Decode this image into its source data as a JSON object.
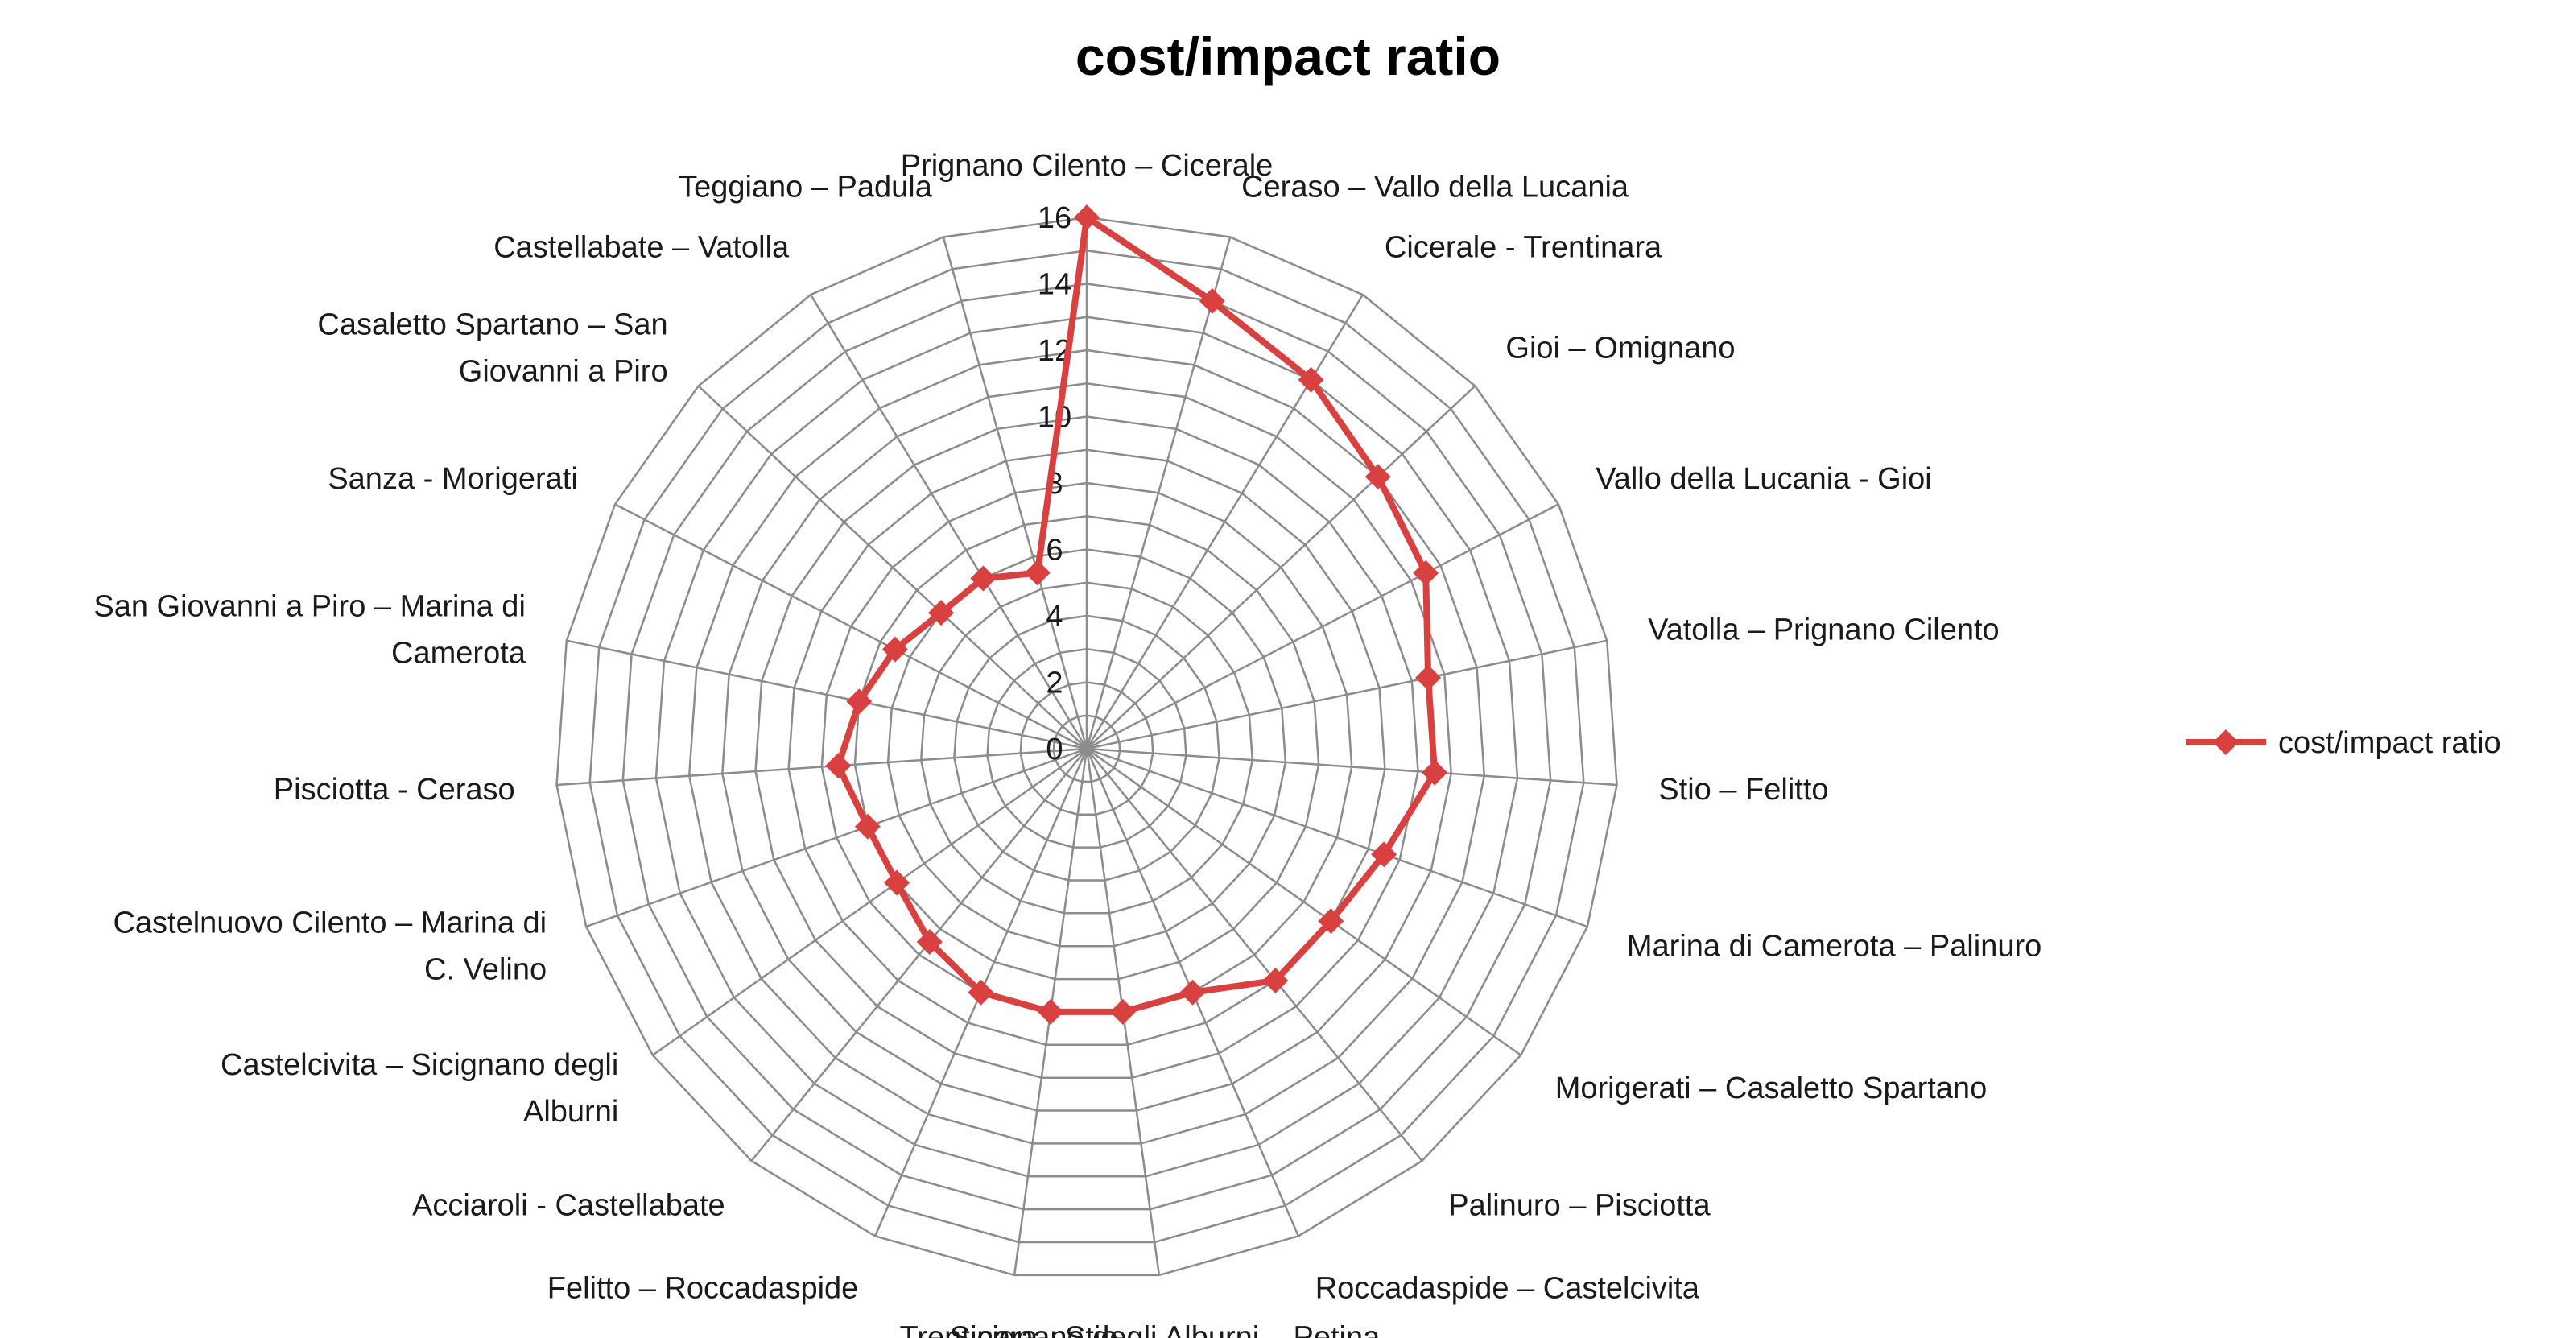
{
  "chart_data": {
    "type": "radar",
    "title": "cost/impact ratio",
    "categories": [
      "Prignano Cilento – Cicerale",
      "Ceraso – Vallo della Lucania",
      "Cicerale - Trentinara",
      "Gioi – Omignano",
      "Vallo della Lucania - Gioi",
      "Vatolla – Prignano Cilento",
      "Stio – Felitto",
      "Marina di Camerota – Palinuro",
      "Morigerati – Casaletto Spartano",
      "Palinuro – Pisciotta",
      "Roccadaspide – Castelcivita",
      "Sicignano degli Alburni – Petina",
      "Trentinara - Stio",
      "Felitto – Roccadaspide",
      "Acciaroli - Castellabate",
      "Castelcivita – Sicignano degli Alburni",
      "Castelnuovo Cilento – Marina di C. Velino",
      "Pisciotta - Ceraso",
      "San Giovanni a Piro – Marina di Camerota",
      "Sanza - Morigerati",
      "Casaletto Spartano – San Giovanni a Piro",
      "Castellabate – Vatolla",
      "Teggiano – Padula"
    ],
    "label_lines": [
      [
        "Prignano Cilento – Cicerale"
      ],
      [
        "Ceraso – Vallo della Lucania"
      ],
      [
        "Cicerale - Trentinara"
      ],
      [
        "Gioi – Omignano"
      ],
      [
        "Vallo della Lucania - Gioi"
      ],
      [
        "Vatolla – Prignano Cilento"
      ],
      [
        "Stio – Felitto"
      ],
      [
        "Marina di Camerota – Palinuro"
      ],
      [
        "Morigerati – Casaletto Spartano"
      ],
      [
        "Palinuro – Pisciotta"
      ],
      [
        "Roccadaspide – Castelcivita"
      ],
      [
        "Sicignano degli Alburni – Petina"
      ],
      [
        "Trentinara - Stio"
      ],
      [
        "Felitto – Roccadaspide"
      ],
      [
        "Acciaroli - Castellabate"
      ],
      [
        "Castelcivita – Sicignano degli",
        "Alburni"
      ],
      [
        "Castelnuovo Cilento – Marina di",
        "C. Velino"
      ],
      [
        "Pisciotta - Ceraso"
      ],
      [
        "San Giovanni a Piro – Marina di",
        "Camerota"
      ],
      [
        "Sanza - Morigerati"
      ],
      [
        "Casaletto Spartano – San",
        "Giovanni a Piro"
      ],
      [
        "Castellabate – Vatolla"
      ],
      [
        "Teggiano – Padula"
      ]
    ],
    "series": [
      {
        "name": "cost/impact ratio",
        "color": "#d94141",
        "values": [
          16,
          14,
          13,
          12,
          11.5,
          10.5,
          10.5,
          9.5,
          9,
          9,
          8,
          8,
          8,
          8,
          7.5,
          7,
          7,
          7.5,
          7,
          6.5,
          6,
          6,
          5.5
        ]
      }
    ],
    "r_ticks": [
      0,
      2,
      4,
      6,
      8,
      10,
      12,
      14,
      16
    ],
    "r_range": [
      0,
      16
    ],
    "grid": true,
    "legend_position": "right"
  }
}
